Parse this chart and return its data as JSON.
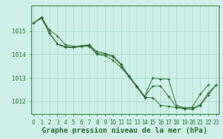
{
  "title": "Graphe pression niveau de la mer (hPa)",
  "background_color": "#cff0e8",
  "line_color": "#2d6a2d",
  "grid_color": "#a8d4c8",
  "hours": [
    0,
    1,
    2,
    3,
    4,
    5,
    6,
    7,
    8,
    9,
    10,
    11,
    12,
    13,
    14,
    15,
    16,
    17,
    18,
    19,
    20,
    21,
    22,
    23
  ],
  "line1": [
    1015.35,
    1015.6,
    1014.95,
    1014.45,
    1014.35,
    1014.3,
    1014.35,
    1014.4,
    1014.05,
    1014.0,
    1013.9,
    1013.55,
    1013.05,
    1012.65,
    1012.2,
    1012.65,
    1012.65,
    1012.2,
    1011.75,
    1011.7,
    1011.75,
    1012.3,
    1012.7,
    null
  ],
  "line2": [
    1015.35,
    1015.55,
    1014.9,
    1014.45,
    1014.3,
    1014.3,
    1014.35,
    1014.35,
    1014.0,
    1013.95,
    1013.75,
    1013.45,
    1013.05,
    1012.6,
    1012.15,
    1012.15,
    1011.82,
    1011.78,
    1011.72,
    1011.67,
    1011.65,
    1011.82,
    1012.25,
    1012.7
  ],
  "line3": [
    1015.35,
    1015.6,
    1015.05,
    1014.8,
    1014.42,
    1014.35,
    1014.38,
    1014.42,
    1014.12,
    1014.05,
    1013.95,
    1013.6,
    1013.1,
    1012.65,
    1012.2,
    1013.0,
    1012.95,
    1012.95,
    1011.82,
    1011.72,
    1011.68,
    1011.85,
    1012.35,
    1012.7
  ],
  "ylim_min": 1011.45,
  "ylim_max": 1016.1,
  "yticks": [
    1012,
    1013,
    1014,
    1015
  ],
  "title_fontsize": 7.5,
  "tick_fontsize": 6.0
}
